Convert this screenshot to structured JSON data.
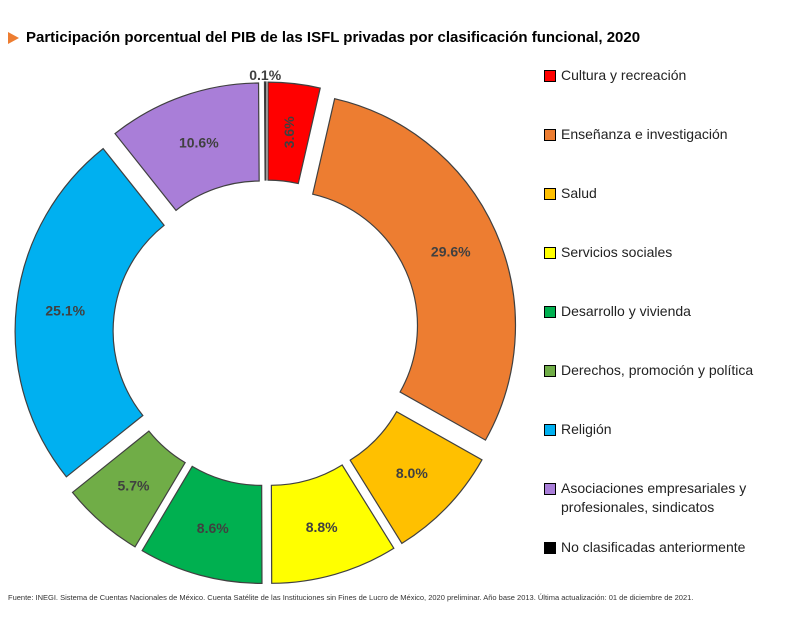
{
  "title": "Participación porcentual del PIB de las ISFL privadas por clasificación funcional, 2020",
  "footer": "Fuente: INEGI. Sistema de Cuentas Nacionales de México. Cuenta Satélite de las Instituciones sin Fines de Lucro de México, 2020 preliminar. Año base 2013.  Última actualización: 01 de diciembre de 2021.",
  "chart_data": {
    "type": "pie",
    "style": "donut, exploded slices",
    "legend_position": "right",
    "categories": [
      "Cultura y recreación",
      "Enseñanza e investigación",
      "Salud",
      "Servicios sociales",
      "Desarrollo y vivienda",
      "Derechos, promoción y política",
      "Religión",
      "Asociaciones empresariales y profesionales, sindicatos",
      "No clasificadas anteriormente"
    ],
    "values": [
      3.6,
      29.6,
      8.0,
      8.8,
      8.6,
      5.7,
      25.1,
      10.6,
      0.1
    ],
    "data_labels": [
      "3.6%",
      "29.6%",
      "8.0%",
      "8.8%",
      "8.6%",
      "5.7%",
      "25.1%",
      "10.6%",
      "0.1%"
    ],
    "colors": [
      "#FF0000",
      "#ED7D31",
      "#FFC000",
      "#FFFF00",
      "#00B050",
      "#70AD47",
      "#00B0F0",
      "#A97ED8",
      "#000000"
    ]
  }
}
